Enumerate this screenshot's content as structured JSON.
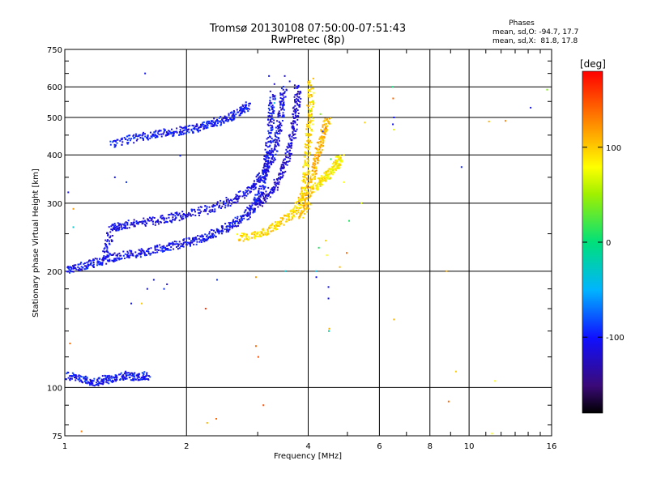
{
  "chart_data": {
    "type": "scatter",
    "title": "Tromsø 20130108 07:50:00-07:51:43",
    "subtitle": "RwPretec (8p)",
    "xlabel": "Frequency [MHz]",
    "ylabel": "Stationary phase Virtual Height [km]",
    "x_scale": "log",
    "y_scale": "log",
    "xlim": [
      1,
      16
    ],
    "ylim": [
      75,
      750
    ],
    "x_ticks": [
      1,
      2,
      4,
      6,
      8,
      10,
      16
    ],
    "y_ticks": [
      75,
      100,
      200,
      300,
      400,
      500,
      600,
      750
    ],
    "grid": true,
    "stats": {
      "header": "Phases",
      "line_o": "mean, sd,O: -94.7, 17.7",
      "line_x": "mean, sd,X:  81.8, 17.8"
    },
    "colorbar": {
      "label": "[deg]",
      "range": [
        -180,
        180
      ],
      "ticks": [
        "100",
        "0",
        "-100"
      ],
      "tick_values": [
        100,
        0,
        -100
      ]
    },
    "traces": [
      {
        "kind": "O-F region lower",
        "phase": -105,
        "points": [
          [
            1.0,
            202
          ],
          [
            1.1,
            207
          ],
          [
            1.2,
            212
          ],
          [
            1.3,
            218
          ],
          [
            1.45,
            222
          ],
          [
            1.6,
            226
          ],
          [
            1.8,
            232
          ],
          [
            2.0,
            238
          ],
          [
            2.2,
            245
          ],
          [
            2.4,
            255
          ],
          [
            2.6,
            266
          ],
          [
            2.8,
            280
          ],
          [
            2.95,
            300
          ],
          [
            3.05,
            330
          ],
          [
            3.12,
            370
          ],
          [
            3.18,
            430
          ],
          [
            3.22,
            500
          ],
          [
            3.25,
            580
          ]
        ]
      },
      {
        "kind": "O-F region second",
        "phase": -110,
        "points": [
          [
            1.25,
            215
          ],
          [
            1.3,
            260
          ],
          [
            1.4,
            265
          ],
          [
            1.6,
            270
          ],
          [
            1.8,
            275
          ],
          [
            2.0,
            282
          ],
          [
            2.3,
            292
          ],
          [
            2.6,
            305
          ],
          [
            2.9,
            330
          ],
          [
            3.1,
            360
          ],
          [
            3.25,
            400
          ],
          [
            3.35,
            450
          ],
          [
            3.42,
            520
          ],
          [
            3.47,
            600
          ]
        ]
      },
      {
        "kind": "O-F region third",
        "phase": -118,
        "points": [
          [
            3.0,
            300
          ],
          [
            3.2,
            320
          ],
          [
            3.4,
            350
          ],
          [
            3.55,
            400
          ],
          [
            3.65,
            460
          ],
          [
            3.72,
            530
          ],
          [
            3.76,
            600
          ]
        ]
      },
      {
        "kind": "O-upper",
        "phase": -102,
        "points": [
          [
            1.3,
            430
          ],
          [
            1.5,
            445
          ],
          [
            1.7,
            455
          ],
          [
            1.9,
            462
          ],
          [
            2.1,
            470
          ],
          [
            2.3,
            485
          ],
          [
            2.5,
            500
          ],
          [
            2.7,
            520
          ],
          [
            2.85,
            540
          ]
        ]
      },
      {
        "kind": "X-lower",
        "phase": 95,
        "points": [
          [
            2.7,
            245
          ],
          [
            3.0,
            250
          ],
          [
            3.3,
            262
          ],
          [
            3.6,
            280
          ],
          [
            3.8,
            300
          ],
          [
            3.9,
            330
          ],
          [
            3.95,
            380
          ],
          [
            4.0,
            450
          ],
          [
            4.03,
            530
          ],
          [
            4.05,
            630
          ]
        ]
      },
      {
        "kind": "X-second",
        "phase": 110,
        "points": [
          [
            3.8,
            280
          ],
          [
            3.95,
            300
          ],
          [
            4.05,
            340
          ],
          [
            4.15,
            380
          ],
          [
            4.25,
            420
          ],
          [
            4.35,
            460
          ],
          [
            4.45,
            500
          ]
        ]
      },
      {
        "kind": "X-third",
        "phase": 85,
        "points": [
          [
            4.1,
            330
          ],
          [
            4.3,
            345
          ],
          [
            4.5,
            360
          ],
          [
            4.7,
            380
          ],
          [
            4.8,
            400
          ]
        ]
      },
      {
        "kind": "E region",
        "phase": -100,
        "points": [
          [
            1.0,
            108
          ],
          [
            1.1,
            105
          ],
          [
            1.2,
            104
          ],
          [
            1.3,
            106
          ],
          [
            1.4,
            108
          ],
          [
            1.5,
            107
          ],
          [
            1.6,
            108
          ]
        ]
      }
    ],
    "scatter_points": [
      [
        1.58,
        650,
        -100
      ],
      [
        1.02,
        320,
        -110
      ],
      [
        1.05,
        290,
        120
      ],
      [
        1.05,
        260,
        -30
      ],
      [
        1.03,
        130,
        140
      ],
      [
        1.1,
        77,
        130
      ],
      [
        1.42,
        340,
        -90
      ],
      [
        1.33,
        350,
        -100
      ],
      [
        1.55,
        165,
        100
      ],
      [
        1.66,
        190,
        -100
      ],
      [
        1.6,
        180,
        -100
      ],
      [
        1.79,
        185,
        -120
      ],
      [
        1.76,
        180,
        -90
      ],
      [
        1.46,
        165,
        -100
      ],
      [
        1.93,
        398,
        -95
      ],
      [
        2.38,
        190,
        -90
      ],
      [
        2.23,
        160,
        160
      ],
      [
        2.25,
        81,
        110
      ],
      [
        2.37,
        83,
        140
      ],
      [
        2.51,
        310,
        -100
      ],
      [
        3.51,
        200,
        -30
      ],
      [
        3.8,
        300,
        -100
      ],
      [
        2.97,
        193,
        120
      ],
      [
        2.97,
        128,
        140
      ],
      [
        3.1,
        90,
        150
      ],
      [
        3.01,
        120,
        150
      ],
      [
        4.49,
        182,
        -100
      ],
      [
        4.49,
        170,
        -100
      ],
      [
        4.51,
        142,
        110
      ],
      [
        4.5,
        140,
        -10
      ],
      [
        4.19,
        193,
        -110
      ],
      [
        4.45,
        220,
        80
      ],
      [
        4.42,
        240,
        100
      ],
      [
        4.25,
        230,
        10
      ],
      [
        4.18,
        200,
        -40
      ],
      [
        4.29,
        510,
        40
      ],
      [
        4.79,
        205,
        110
      ],
      [
        4.98,
        223,
        140
      ],
      [
        5.05,
        270,
        10
      ],
      [
        4.9,
        340,
        80
      ],
      [
        5.42,
        300,
        70
      ],
      [
        5.52,
        485,
        100
      ],
      [
        6.48,
        600,
        0
      ],
      [
        6.49,
        560,
        140
      ],
      [
        6.52,
        500,
        -100
      ],
      [
        6.48,
        480,
        -100
      ],
      [
        6.51,
        465,
        70
      ],
      [
        6.52,
        150,
        110
      ],
      [
        8.8,
        200,
        110
      ],
      [
        8.9,
        92,
        140
      ],
      [
        9.28,
        110,
        100
      ],
      [
        9.58,
        372,
        -95
      ],
      [
        11.2,
        488,
        110
      ],
      [
        12.3,
        490,
        130
      ],
      [
        11.4,
        76,
        80
      ],
      [
        11.6,
        104,
        80
      ],
      [
        14.2,
        530,
        -100
      ],
      [
        15.6,
        590,
        40
      ],
      [
        3.2,
        640,
        -100
      ],
      [
        3.3,
        610,
        -120
      ],
      [
        3.5,
        640,
        -110
      ],
      [
        3.6,
        620,
        -100
      ],
      [
        3.3,
        545,
        -40
      ],
      [
        4.12,
        550,
        60
      ],
      [
        4.05,
        520,
        40
      ],
      [
        4.1,
        480,
        80
      ],
      [
        4.35,
        460,
        -95
      ],
      [
        4.55,
        390,
        10
      ]
    ]
  }
}
